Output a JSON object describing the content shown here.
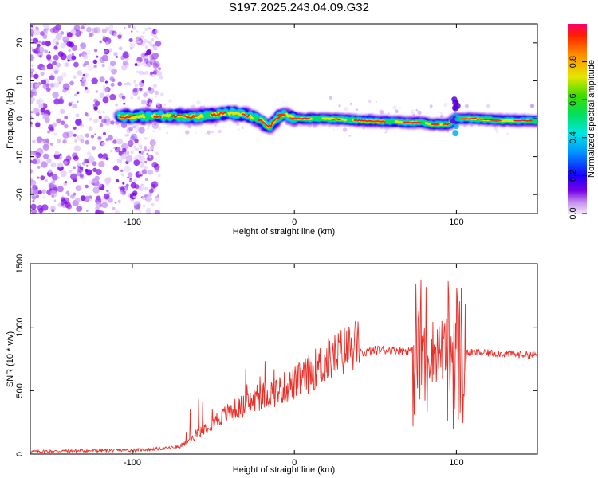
{
  "title": "S197.2025.243.04.09.G32",
  "colors": {
    "snr_line": "#e8302a",
    "axis": "#000000",
    "background": "#ffffff"
  },
  "chart_data": [
    {
      "type": "heatmap",
      "name": "spectrogram",
      "xlabel": "Height of straight line (km)",
      "ylabel": "Frequency (Hz)",
      "xlim": [
        -163,
        150
      ],
      "ylim": [
        -25,
        25
      ],
      "xticks": [
        -100,
        0,
        100
      ],
      "xtick_labels": [
        "-100",
        "0",
        "100"
      ],
      "yticks": [
        -20,
        -10,
        0,
        10,
        20
      ],
      "ytick_labels": [
        "-20",
        "-10",
        "0",
        "10",
        "20"
      ],
      "colorbar": {
        "label": "Normalized spectral amplitude",
        "range": [
          0,
          1
        ],
        "ticks": [
          0,
          0.2,
          0.4,
          0.6,
          0.8
        ],
        "tick_labels": [
          "0.0",
          "0.2",
          "0.4",
          "0.6",
          "0.8"
        ]
      },
      "ridge": {
        "description_points_x": [
          -108,
          -80,
          -60,
          -40,
          -30,
          -20,
          -16,
          -10,
          -5,
          0,
          20,
          40,
          60,
          70,
          80,
          85,
          90,
          95,
          100,
          110,
          130,
          150
        ],
        "description_points_y": [
          0.5,
          0.8,
          0.5,
          1.5,
          1.0,
          -0.5,
          -2.5,
          0.5,
          1.0,
          0.0,
          0.0,
          -0.5,
          -0.8,
          -1.0,
          -1.0,
          -1.5,
          -1.5,
          -1.5,
          0.0,
          0.0,
          -0.5,
          -0.5
        ]
      }
    },
    {
      "type": "line",
      "name": "snr",
      "xlabel": "Height of straight line (km)",
      "ylabel": "SNR (10 * v/v)",
      "xlim": [
        -163,
        150
      ],
      "ylim": [
        0,
        1500
      ],
      "xticks": [
        -100,
        0,
        100
      ],
      "xtick_labels": [
        "-100",
        "0",
        "100"
      ],
      "yticks": [
        0,
        500,
        1000,
        1500
      ],
      "ytick_labels": [
        "0",
        "500",
        "1000",
        "1500"
      ],
      "trend_x": [
        -163,
        -140,
        -100,
        -80,
        -70,
        -65,
        -60,
        -50,
        -40,
        -30,
        -20,
        -10,
        0,
        10,
        20,
        30,
        40,
        50,
        60,
        70,
        75,
        80,
        90,
        100,
        105,
        110,
        130,
        150
      ],
      "trend_y": [
        20,
        25,
        30,
        45,
        60,
        90,
        150,
        230,
        300,
        350,
        410,
        450,
        500,
        580,
        660,
        730,
        790,
        820,
        820,
        815,
        810,
        810,
        820,
        800,
        790,
        800,
        790,
        780
      ]
    }
  ]
}
